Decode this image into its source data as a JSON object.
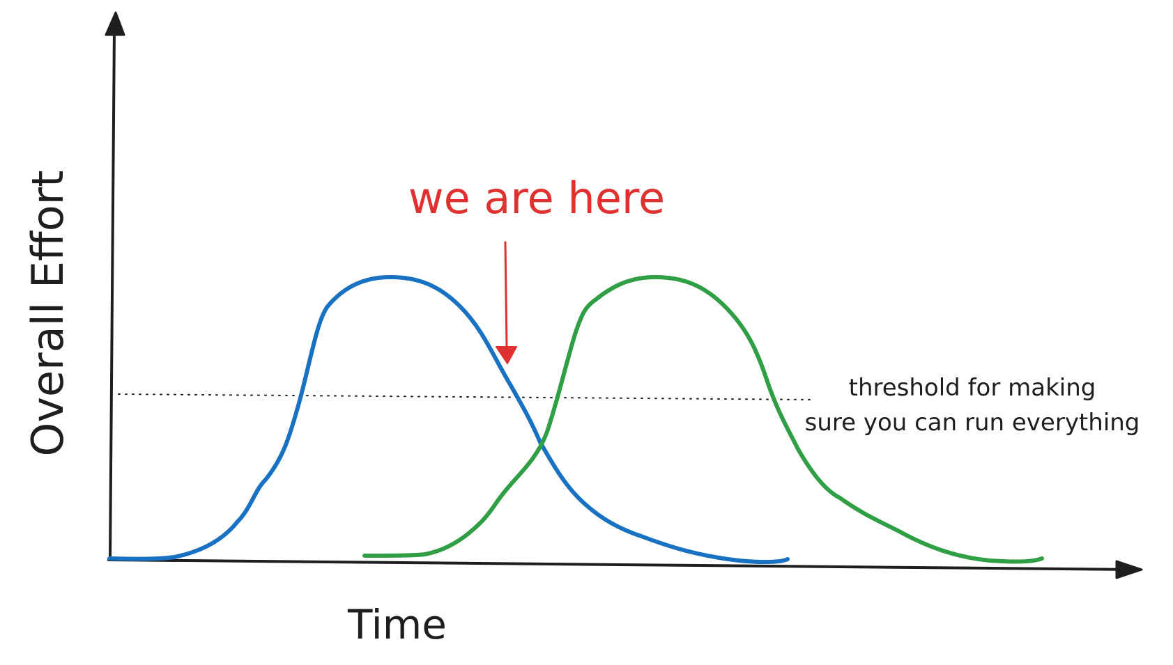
{
  "diagram": {
    "y_axis_label": "Overall Effort",
    "x_axis_label": "Time",
    "annotation": "we are here",
    "threshold_label_line1": "threshold for making",
    "threshold_label_line2": "sure you can run everything"
  },
  "colors": {
    "axis": "#1e1e1e",
    "curve_first": "#1971c2",
    "curve_second": "#2f9e44",
    "annotation": "#e03131",
    "threshold": "#1e1e1e",
    "text": "#1e1e1e"
  },
  "icons": {
    "y_axis_arrowhead": "arrow-up-icon",
    "x_axis_arrowhead": "arrow-right-icon",
    "annotation_arrow": "arrow-down-icon"
  }
}
